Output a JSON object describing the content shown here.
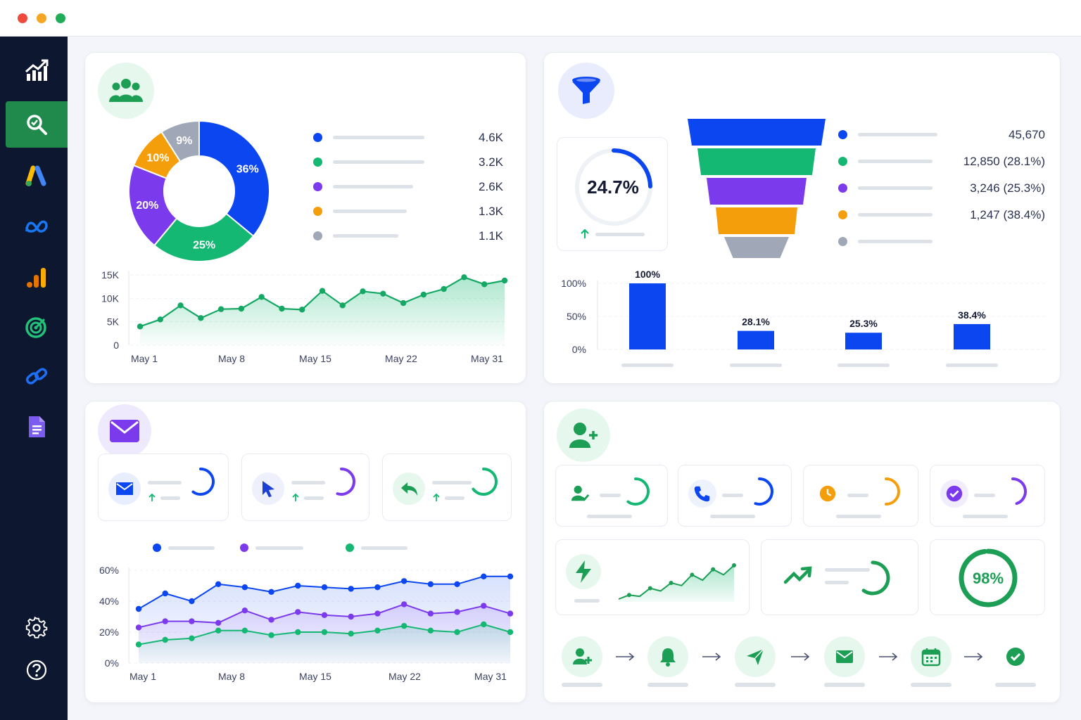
{
  "window": {
    "controls": [
      "close",
      "minimize",
      "maximize"
    ]
  },
  "colors": {
    "blue": "#0b46f0",
    "green": "#14b873",
    "purple": "#7c3aed",
    "orange": "#f59e0b",
    "gray": "#a0a7b6",
    "sidebar": "#0e1730",
    "active": "#1f8a4c"
  },
  "sidebar": {
    "items": [
      {
        "icon": "analytics-chart-icon"
      },
      {
        "icon": "search-icon",
        "active": true
      },
      {
        "icon": "google-ads-icon"
      },
      {
        "icon": "meta-icon"
      },
      {
        "icon": "google-analytics-icon"
      },
      {
        "icon": "target-icon"
      },
      {
        "icon": "link-icon"
      },
      {
        "icon": "document-icon"
      }
    ],
    "bottom": [
      {
        "icon": "settings-gear-icon"
      },
      {
        "icon": "help-icon"
      }
    ]
  },
  "audience": {
    "icon": "users-group-icon",
    "donut": {
      "slices": [
        {
          "label": "36%",
          "value": 36,
          "color": "#0b46f0"
        },
        {
          "label": "25%",
          "value": 25,
          "color": "#14b873"
        },
        {
          "label": "20%",
          "value": 20,
          "color": "#7c3aed"
        },
        {
          "label": "10%",
          "value": 10,
          "color": "#f59e0b"
        },
        {
          "label": "9%",
          "value": 9,
          "color": "#a0a7b6"
        }
      ]
    },
    "legend": [
      {
        "value": "4.6K",
        "color": "#0b46f0"
      },
      {
        "value": "3.2K",
        "color": "#14b873"
      },
      {
        "value": "2.6K",
        "color": "#7c3aed"
      },
      {
        "value": "1.3K",
        "color": "#f59e0b"
      },
      {
        "value": "1.1K",
        "color": "#a0a7b6"
      }
    ]
  },
  "traffic_chart": {
    "type": "area",
    "y_ticks": [
      "15K",
      "10K",
      "5K",
      "0"
    ],
    "ylim": [
      0,
      15000
    ],
    "x_labels": [
      "May 1",
      "May 8",
      "May 15",
      "May 22",
      "May 31"
    ],
    "values": [
      4000,
      5500,
      8500,
      5800,
      7700,
      7800,
      10300,
      7800,
      7600,
      11600,
      8500,
      11500,
      11000,
      9000,
      10800,
      12000,
      14500,
      13000,
      13800
    ]
  },
  "funnel": {
    "icon": "funnel-icon",
    "gauge": {
      "value": "24.7%",
      "fraction": 0.247
    },
    "stages": [
      {
        "color": "#0b46f0"
      },
      {
        "color": "#14b873"
      },
      {
        "color": "#7c3aed"
      },
      {
        "color": "#f59e0b"
      },
      {
        "color": "#a0a7b6"
      }
    ],
    "legend": [
      {
        "value": "45,670",
        "color": "#0b46f0"
      },
      {
        "value": "12,850 (28.1%)",
        "color": "#14b873"
      },
      {
        "value": "3,246 (25.3%)",
        "color": "#7c3aed"
      },
      {
        "value": "1,247 (38.4%)",
        "color": "#f59e0b"
      },
      {
        "value": "",
        "color": "#a0a7b6"
      }
    ]
  },
  "chart_data": {
    "type": "bar",
    "y_ticks": [
      "100%",
      "50%",
      "0%"
    ],
    "ylim": [
      0,
      100
    ],
    "labels": [
      "100%",
      "28.1%",
      "25.3%",
      "38.4%"
    ],
    "values": [
      100,
      28.1,
      25.3,
      38.4
    ]
  },
  "email": {
    "icon": "envelope-icon",
    "stats": [
      {
        "icon": "mail-icon",
        "color": "#0b46f0",
        "fraction": 0.6
      },
      {
        "icon": "cursor-click-icon",
        "color": "#7c3aed",
        "fraction": 0.55
      },
      {
        "icon": "reply-icon",
        "color": "#14b873",
        "fraction": 0.65
      }
    ],
    "chart": {
      "type": "line",
      "y_ticks": [
        "60%",
        "40%",
        "20%",
        "0%"
      ],
      "ylim": [
        0,
        60
      ],
      "x_labels": [
        "May 1",
        "May 8",
        "May 15",
        "May 22",
        "May 31"
      ],
      "series": [
        {
          "color": "#0b46f0",
          "values": [
            35,
            45,
            40,
            51,
            49,
            46,
            50,
            49,
            48,
            49,
            53,
            51,
            51,
            56,
            56
          ]
        },
        {
          "color": "#7c3aed",
          "values": [
            23,
            27,
            27,
            26,
            34,
            28,
            33,
            31,
            30,
            32,
            38,
            32,
            33,
            37,
            32
          ]
        },
        {
          "color": "#14b873",
          "values": [
            12,
            15,
            16,
            21,
            21,
            18,
            20,
            20,
            19,
            21,
            24,
            21,
            20,
            25,
            20
          ]
        }
      ]
    }
  },
  "leads": {
    "icon": "user-plus-icon",
    "stats": [
      {
        "icon": "user-check-icon",
        "color": "#14b873",
        "fraction": 0.6
      },
      {
        "icon": "phone-icon",
        "color": "#0b46f0",
        "fraction": 0.55
      },
      {
        "icon": "clock-icon",
        "color": "#f59e0b",
        "fraction": 0.5
      },
      {
        "icon": "check-badge-icon",
        "color": "#7c3aed",
        "fraction": 0.45
      }
    ],
    "sparkline": [
      10,
      13,
      12,
      18,
      16,
      22,
      20,
      28,
      24,
      32,
      28,
      35
    ],
    "score": {
      "value": "98%",
      "fraction": 0.98
    },
    "flow": [
      {
        "icon": "user-add-icon"
      },
      {
        "icon": "bell-icon"
      },
      {
        "icon": "send-icon"
      },
      {
        "icon": "mail-icon"
      },
      {
        "icon": "calendar-icon"
      },
      {
        "icon": "check-circle-icon"
      }
    ]
  }
}
